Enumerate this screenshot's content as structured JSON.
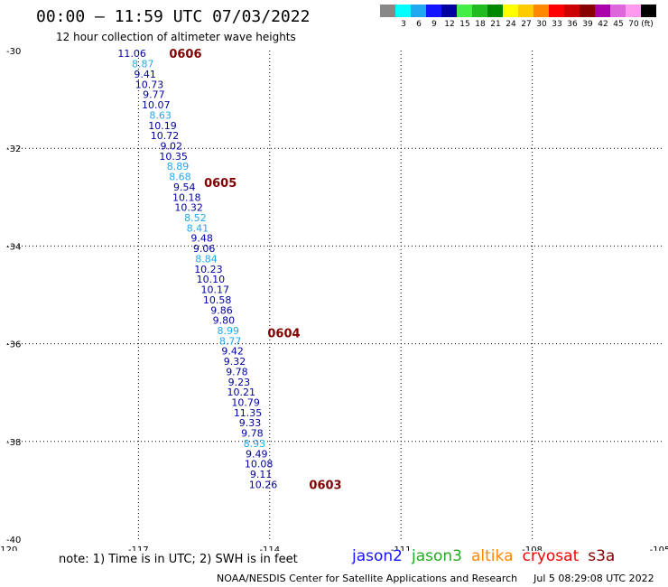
{
  "header": {
    "title": "00:00 – 11:59 UTC 07/03/2022",
    "subtitle": "12 hour collection of altimeter wave heights"
  },
  "legend": {
    "unit_label": "(ft)",
    "items": [
      {
        "label": "",
        "color": "#888888"
      },
      {
        "label": "3",
        "color": "#00ffff"
      },
      {
        "label": "6",
        "color": "#1fa8f0"
      },
      {
        "label": "9",
        "color": "#1414ff"
      },
      {
        "label": "12",
        "color": "#0000a0"
      },
      {
        "label": "15",
        "color": "#44ee44"
      },
      {
        "label": "18",
        "color": "#22bb22"
      },
      {
        "label": "21",
        "color": "#008800"
      },
      {
        "label": "24",
        "color": "#ffff00"
      },
      {
        "label": "27",
        "color": "#ffcc00"
      },
      {
        "label": "30",
        "color": "#ff8800"
      },
      {
        "label": "33",
        "color": "#ff0000"
      },
      {
        "label": "36",
        "color": "#cc0000"
      },
      {
        "label": "39",
        "color": "#880000"
      },
      {
        "label": "42",
        "color": "#aa00aa"
      },
      {
        "label": "45",
        "color": "#dd66dd"
      },
      {
        "label": "70",
        "color": "#ff99ee"
      },
      {
        "label": "",
        "color": "#000000"
      }
    ]
  },
  "chart_data": {
    "type": "scatter",
    "xlim": [
      -120,
      -105
    ],
    "ylim": [
      -40,
      -30
    ],
    "x_ticks": [
      "-120",
      "-117",
      "-114",
      "-111",
      "-108",
      "-105"
    ],
    "y_ticks": [
      "-30",
      "-32",
      "-34",
      "-36",
      "-38",
      "-40"
    ],
    "grid": true,
    "series": [
      {
        "name": "jason2",
        "points": [
          {
            "lon": -117.15,
            "lat": -30.06,
            "value": "11.06",
            "color": "#0000a0"
          },
          {
            "lon": -116.9,
            "lat": -30.27,
            "value": "8.87",
            "color": "#1fa8f0"
          },
          {
            "lon": -116.85,
            "lat": -30.48,
            "value": "9.41",
            "color": "#0000a0"
          },
          {
            "lon": -116.75,
            "lat": -30.69,
            "value": "10.73",
            "color": "#0000a0"
          },
          {
            "lon": -116.65,
            "lat": -30.9,
            "value": "9.77",
            "color": "#0000a0"
          },
          {
            "lon": -116.6,
            "lat": -31.11,
            "value": "10.07",
            "color": "#0000a0"
          },
          {
            "lon": -116.5,
            "lat": -31.32,
            "value": "8.63",
            "color": "#1fa8f0"
          },
          {
            "lon": -116.45,
            "lat": -31.53,
            "value": "10.19",
            "color": "#0000a0"
          },
          {
            "lon": -116.4,
            "lat": -31.74,
            "value": "10.72",
            "color": "#0000a0"
          },
          {
            "lon": -116.25,
            "lat": -31.95,
            "value": "9.02",
            "color": "#0000a0"
          },
          {
            "lon": -116.2,
            "lat": -32.16,
            "value": "10.35",
            "color": "#0000a0"
          },
          {
            "lon": -116.1,
            "lat": -32.37,
            "value": "8.89",
            "color": "#1fa8f0"
          },
          {
            "lon": -116.05,
            "lat": -32.58,
            "value": "8.68",
            "color": "#1fa8f0"
          },
          {
            "lon": -115.95,
            "lat": -32.79,
            "value": "9.54",
            "color": "#0000a0"
          },
          {
            "lon": -115.9,
            "lat": -33.0,
            "value": "10.18",
            "color": "#0000a0"
          },
          {
            "lon": -115.85,
            "lat": -33.21,
            "value": "10.32",
            "color": "#0000a0"
          },
          {
            "lon": -115.7,
            "lat": -33.42,
            "value": "8.52",
            "color": "#1fa8f0"
          },
          {
            "lon": -115.65,
            "lat": -33.63,
            "value": "8.41",
            "color": "#1fa8f0"
          },
          {
            "lon": -115.55,
            "lat": -33.84,
            "value": "9.48",
            "color": "#0000a0"
          },
          {
            "lon": -115.5,
            "lat": -34.05,
            "value": "9.06",
            "color": "#0000a0"
          },
          {
            "lon": -115.45,
            "lat": -34.26,
            "value": "8.84",
            "color": "#1fa8f0"
          },
          {
            "lon": -115.4,
            "lat": -34.47,
            "value": "10.23",
            "color": "#0000a0"
          },
          {
            "lon": -115.35,
            "lat": -34.68,
            "value": "10.10",
            "color": "#0000a0"
          },
          {
            "lon": -115.25,
            "lat": -34.89,
            "value": "10.17",
            "color": "#0000a0"
          },
          {
            "lon": -115.2,
            "lat": -35.1,
            "value": "10.58",
            "color": "#0000a0"
          },
          {
            "lon": -115.1,
            "lat": -35.31,
            "value": "9.86",
            "color": "#0000a0"
          },
          {
            "lon": -115.05,
            "lat": -35.52,
            "value": "9.80",
            "color": "#0000a0"
          },
          {
            "lon": -114.95,
            "lat": -35.73,
            "value": "8.99",
            "color": "#1fa8f0"
          },
          {
            "lon": -114.9,
            "lat": -35.94,
            "value": "8.77",
            "color": "#1fa8f0"
          },
          {
            "lon": -114.85,
            "lat": -36.15,
            "value": "9.42",
            "color": "#0000a0"
          },
          {
            "lon": -114.8,
            "lat": -36.36,
            "value": "9.32",
            "color": "#0000a0"
          },
          {
            "lon": -114.75,
            "lat": -36.57,
            "value": "9.78",
            "color": "#0000a0"
          },
          {
            "lon": -114.7,
            "lat": -36.78,
            "value": "9.23",
            "color": "#0000a0"
          },
          {
            "lon": -114.65,
            "lat": -36.99,
            "value": "10.21",
            "color": "#0000a0"
          },
          {
            "lon": -114.55,
            "lat": -37.2,
            "value": "10.79",
            "color": "#0000a0"
          },
          {
            "lon": -114.5,
            "lat": -37.41,
            "value": "11.35",
            "color": "#0000a0"
          },
          {
            "lon": -114.45,
            "lat": -37.62,
            "value": "9.33",
            "color": "#0000a0"
          },
          {
            "lon": -114.4,
            "lat": -37.83,
            "value": "9.78",
            "color": "#0000a0"
          },
          {
            "lon": -114.35,
            "lat": -38.04,
            "value": "8.93",
            "color": "#1fa8f0"
          },
          {
            "lon": -114.3,
            "lat": -38.25,
            "value": "9.49",
            "color": "#0000a0"
          },
          {
            "lon": -114.25,
            "lat": -38.46,
            "value": "10.08",
            "color": "#0000a0"
          },
          {
            "lon": -114.2,
            "lat": -38.67,
            "value": "9.11",
            "color": "#0000a0"
          },
          {
            "lon": -114.15,
            "lat": -38.88,
            "value": "10.26",
            "color": "#0000a0"
          }
        ]
      }
    ],
    "time_labels": [
      {
        "lon": -116.3,
        "lat": -30.06,
        "text": "0606"
      },
      {
        "lon": -115.5,
        "lat": -32.7,
        "text": "0605"
      },
      {
        "lon": -114.05,
        "lat": -35.78,
        "text": "0604"
      },
      {
        "lon": -113.1,
        "lat": -38.88,
        "text": "0603"
      }
    ]
  },
  "footer": {
    "note": "note:  1) Time is in UTC; 2) SWH is in feet",
    "satellites": [
      {
        "name": "jason2",
        "color": "#1414ff"
      },
      {
        "name": "jason3",
        "color": "#22aa22"
      },
      {
        "name": "altika",
        "color": "#ff8800"
      },
      {
        "name": "cryosat",
        "color": "#ff0000"
      },
      {
        "name": "s3a",
        "color": "#880000"
      }
    ],
    "credit": "NOAA/NESDIS Center for Satellite Applications and Research",
    "generated": "Jul  5 08:29:08 UTC 2022"
  }
}
